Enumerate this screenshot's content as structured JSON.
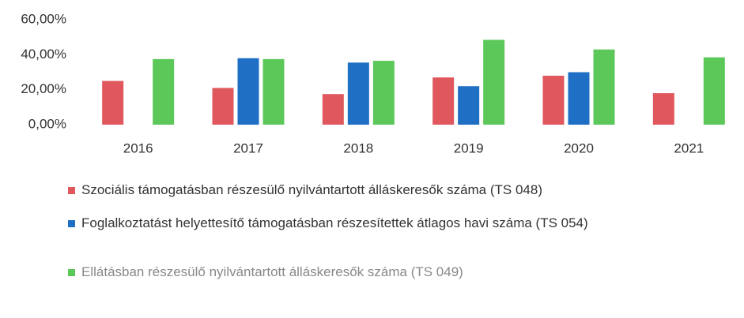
{
  "chart_data": {
    "type": "bar",
    "categories": [
      "2016",
      "2017",
      "2018",
      "2019",
      "2020",
      "2021"
    ],
    "series": [
      {
        "name": "Szociális támogatásban részesülő nyilvántartott álláskeresők száma (TS 048)",
        "color": "#e0585e",
        "values": [
          25,
          21,
          17.5,
          27,
          28,
          18
        ]
      },
      {
        "name": "Foglalkoztatást helyettesítő támogatásban részesítettek átlagos havi száma (TS 054)",
        "color": "#1f6fc5",
        "values": [
          null,
          38,
          35.5,
          22,
          30,
          null
        ]
      },
      {
        "name": "Ellátásban részesülő nyilvántartott álláskeresők száma (TS 049)",
        "color": "#5cc85a",
        "values": [
          37.5,
          37.5,
          36.5,
          48.5,
          43,
          38.5
        ]
      }
    ],
    "ylim": [
      0,
      60
    ],
    "yticks": [
      {
        "value": 0,
        "label": "0,00%"
      },
      {
        "value": 20,
        "label": "20,00%"
      },
      {
        "value": 40,
        "label": "40,00%"
      },
      {
        "value": 60,
        "label": "60,00%"
      }
    ],
    "grid": false
  }
}
